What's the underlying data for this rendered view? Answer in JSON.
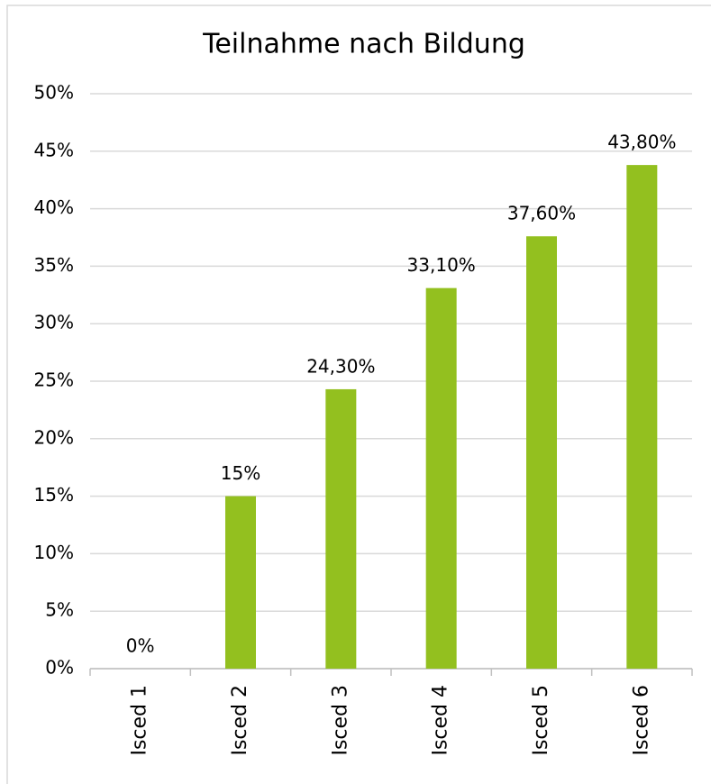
{
  "chart_data": {
    "type": "bar",
    "title": "Teilnahme nach Bildung",
    "categories": [
      "Isced 1",
      "Isced 2",
      "Isced 3",
      "Isced 4",
      "Isced 5",
      "Isced 6"
    ],
    "values": [
      0,
      15,
      24.3,
      33.1,
      37.6,
      43.8
    ],
    "value_labels": [
      "0%",
      "15%",
      "24,30%",
      "33,10%",
      "37,60%",
      "43,80%"
    ],
    "color": "#93c01f",
    "ylim": [
      0,
      50
    ],
    "yticks": [
      {
        "value": 0,
        "label": "0%"
      },
      {
        "value": 5,
        "label": "5%"
      },
      {
        "value": 10,
        "label": "10%"
      },
      {
        "value": 15,
        "label": "15%"
      },
      {
        "value": 20,
        "label": "20%"
      },
      {
        "value": 25,
        "label": "25%"
      },
      {
        "value": 30,
        "label": "30%"
      },
      {
        "value": 35,
        "label": "35%"
      },
      {
        "value": 40,
        "label": "40%"
      },
      {
        "value": 45,
        "label": "45%"
      },
      {
        "value": 50,
        "label": "50%"
      }
    ],
    "grid": true
  }
}
